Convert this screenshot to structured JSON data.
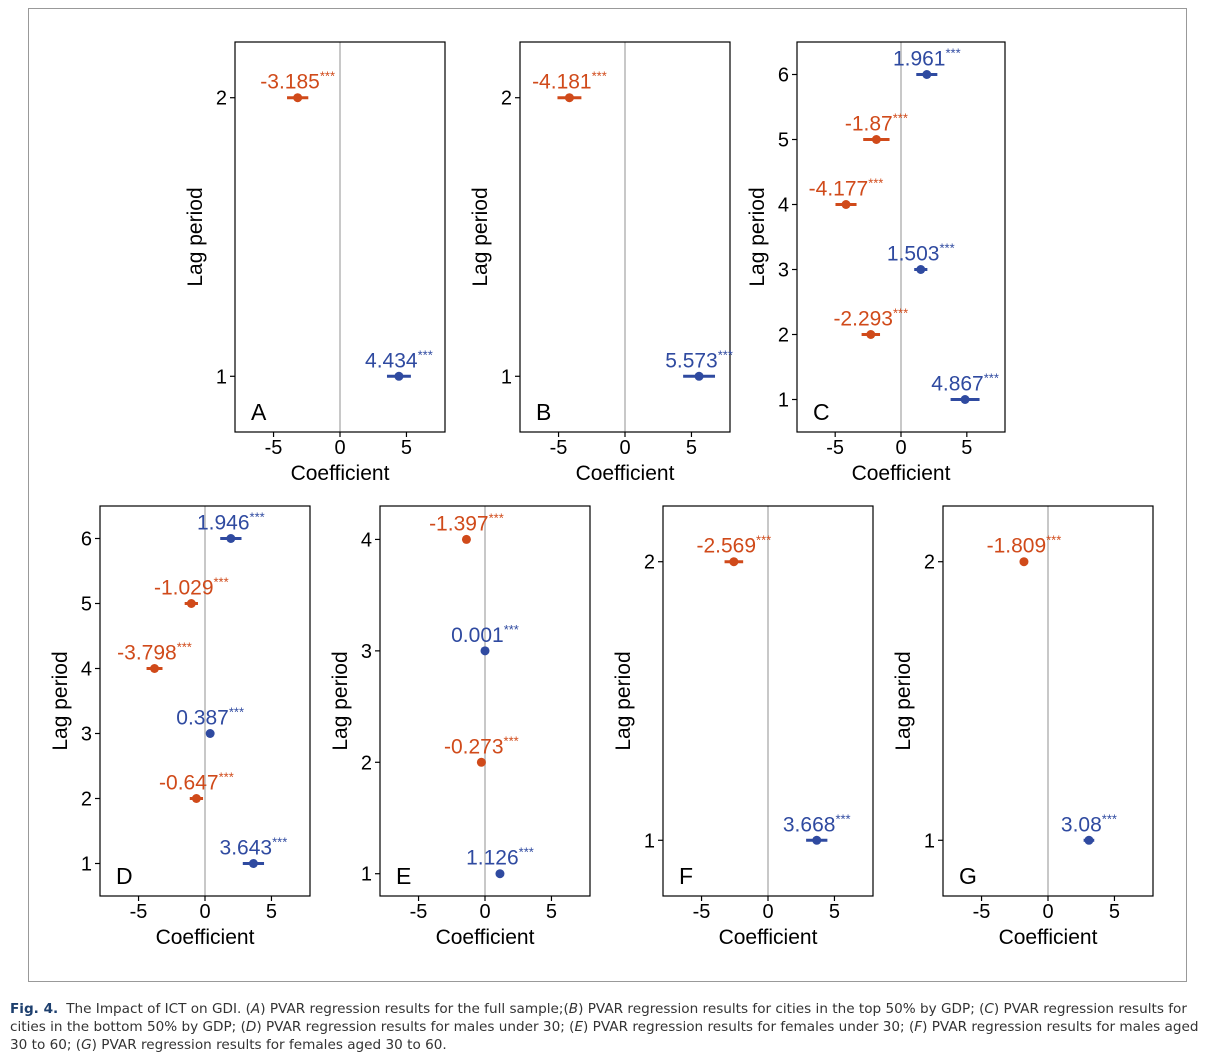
{
  "chart_data": [
    {
      "type": "dot",
      "panel_label": "A",
      "xlabel": "Coefficient",
      "ylabel": "Lag period",
      "lags": [
        2,
        1
      ],
      "values": [
        -3.185,
        4.434
      ],
      "errors": [
        0.8,
        0.9
      ],
      "value_labels": [
        "-3.185***",
        "4.434***"
      ],
      "colors": [
        "#d04a1a",
        "#2f4aa0"
      ],
      "xlim": [
        -7.9,
        7.9
      ],
      "xticks": [
        -5,
        0,
        5
      ],
      "ylim": [
        0.8,
        2.2
      ],
      "yticks": [
        1,
        2
      ]
    },
    {
      "type": "dot",
      "panel_label": "B",
      "xlabel": "Coefficient",
      "ylabel": "Lag period",
      "lags": [
        2,
        1
      ],
      "values": [
        -4.181,
        5.573
      ],
      "errors": [
        0.9,
        1.2
      ],
      "value_labels": [
        "-4.181***",
        "5.573***"
      ],
      "colors": [
        "#d04a1a",
        "#2f4aa0"
      ],
      "xlim": [
        -7.9,
        7.9
      ],
      "xticks": [
        -5,
        0,
        5
      ],
      "ylim": [
        0.8,
        2.2
      ],
      "yticks": [
        1,
        2
      ]
    },
    {
      "type": "dot",
      "panel_label": "C",
      "xlabel": "Coefficient",
      "ylabel": "Lag period",
      "lags": [
        6,
        5,
        4,
        3,
        2,
        1
      ],
      "values": [
        1.961,
        -1.87,
        -4.177,
        1.503,
        -2.293,
        4.867
      ],
      "errors": [
        0.8,
        1.0,
        0.8,
        0.5,
        0.7,
        1.1
      ],
      "value_labels": [
        "1.961***",
        "-1.87***",
        "-4.177***",
        "1.503***",
        "-2.293***",
        "4.867***"
      ],
      "colors": [
        "#2f4aa0",
        "#d04a1a",
        "#d04a1a",
        "#2f4aa0",
        "#d04a1a",
        "#2f4aa0"
      ],
      "xlim": [
        -7.9,
        7.9
      ],
      "xticks": [
        -5,
        0,
        5
      ],
      "ylim": [
        0.5,
        6.5
      ],
      "yticks": [
        1,
        2,
        3,
        4,
        5,
        6
      ]
    },
    {
      "type": "dot",
      "panel_label": "D",
      "xlabel": "Coefficient",
      "ylabel": "Lag period",
      "lags": [
        6,
        5,
        4,
        3,
        2,
        1
      ],
      "values": [
        1.946,
        -1.029,
        -3.798,
        0.387,
        -0.647,
        3.643
      ],
      "errors": [
        0.8,
        0.5,
        0.6,
        0.3,
        0.5,
        0.8
      ],
      "value_labels": [
        "1.946***",
        "-1.029***",
        "-3.798***",
        "0.387***",
        "-0.647***",
        "3.643***"
      ],
      "colors": [
        "#2f4aa0",
        "#d04a1a",
        "#d04a1a",
        "#2f4aa0",
        "#d04a1a",
        "#2f4aa0"
      ],
      "xlim": [
        -7.9,
        7.9
      ],
      "xticks": [
        -5,
        0,
        5
      ],
      "ylim": [
        0.5,
        6.5
      ],
      "yticks": [
        1,
        2,
        3,
        4,
        5,
        6
      ]
    },
    {
      "type": "dot",
      "panel_label": "E",
      "xlabel": "Coefficient",
      "ylabel": "Lag period",
      "lags": [
        4,
        3,
        2,
        1
      ],
      "values": [
        -1.397,
        0.001,
        -0.273,
        1.126
      ],
      "errors": [
        0.2,
        0.2,
        0.2,
        0.2
      ],
      "value_labels": [
        "-1.397***",
        "0.001***",
        "-0.273***",
        "1.126***"
      ],
      "colors": [
        "#d04a1a",
        "#2f4aa0",
        "#d04a1a",
        "#2f4aa0"
      ],
      "xlim": [
        -7.9,
        7.9
      ],
      "xticks": [
        -5,
        0,
        5
      ],
      "ylim": [
        0.8,
        4.3
      ],
      "yticks": [
        1,
        2,
        3,
        4
      ]
    },
    {
      "type": "dot",
      "panel_label": "F",
      "xlabel": "Coefficient",
      "ylabel": "Lag period",
      "lags": [
        2,
        1
      ],
      "values": [
        -2.569,
        3.668
      ],
      "errors": [
        0.7,
        0.8
      ],
      "value_labels": [
        "-2.569***",
        "3.668***"
      ],
      "colors": [
        "#d04a1a",
        "#2f4aa0"
      ],
      "xlim": [
        -7.9,
        7.9
      ],
      "xticks": [
        -5,
        0,
        5
      ],
      "ylim": [
        0.8,
        2.2
      ],
      "yticks": [
        1,
        2
      ]
    },
    {
      "type": "dot",
      "panel_label": "G",
      "xlabel": "Coefficient",
      "ylabel": "Lag period",
      "lags": [
        2,
        1
      ],
      "values": [
        -1.809,
        3.08
      ],
      "errors": [
        0.3,
        0.4
      ],
      "value_labels": [
        "-1.809***",
        "3.08***"
      ],
      "colors": [
        "#d04a1a",
        "#2f4aa0"
      ],
      "xlim": [
        -7.9,
        7.9
      ],
      "xticks": [
        -5,
        0,
        5
      ],
      "ylim": [
        0.8,
        2.2
      ],
      "yticks": [
        1,
        2
      ]
    }
  ],
  "caption": {
    "label": "Fig. 4.",
    "segments": [
      "The Impact of ICT on GDI. (",
      "A",
      ") PVAR regression results for the full sample;(",
      "B",
      ") PVAR regression results for cities in the top 50% by GDP; (",
      "C",
      ") PVAR regression results for cities in the bottom 50% by GDP; (",
      "D",
      ") PVAR regression results for males under 30; (",
      "E",
      ") PVAR regression results for females under 30; (",
      "F",
      ") PVAR regression results for males aged 30 to 60; (",
      "G",
      ") PVAR regression results for females aged 30 to 60."
    ]
  }
}
